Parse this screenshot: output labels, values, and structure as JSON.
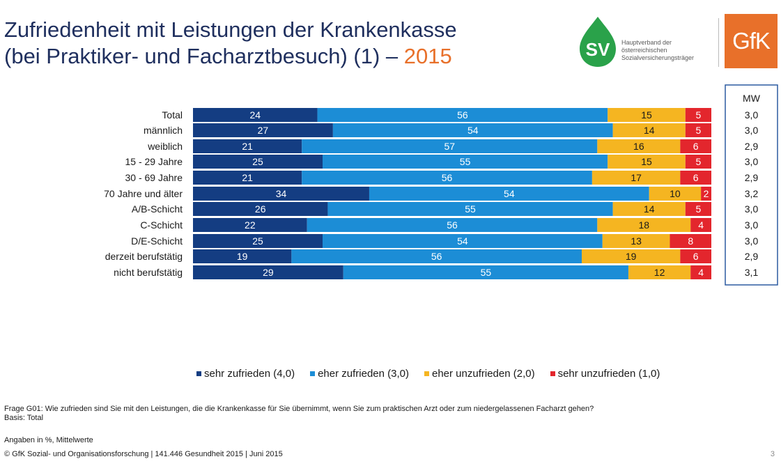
{
  "title": {
    "line1": "Zufriedenheit mit Leistungen der Krankenkasse",
    "line2": "(bei Praktiker- und Facharztbesuch) (1) – ",
    "year": "2015"
  },
  "logos": {
    "sv_mark": "SV",
    "sv_text": [
      "Hauptverband der",
      "österreichischen",
      "Sozialversicherungsträger"
    ],
    "gfk": "GfK"
  },
  "colors": {
    "sehr_zufrieden": "#143d82",
    "eher_zufrieden": "#1c8dd6",
    "eher_unzufrieden": "#f5b521",
    "sehr_unzufrieden": "#e3262d",
    "mw_box": "#2c5aa0"
  },
  "chart_data": {
    "type": "bar",
    "orientation": "horizontal-stacked-100",
    "categories": [
      "Total",
      "männlich",
      "weiblich",
      "15 - 29 Jahre",
      "30 - 69 Jahre",
      "70 Jahre und älter",
      "A/B-Schicht",
      "C-Schicht",
      "D/E-Schicht",
      "derzeit berufstätig",
      "nicht berufstätig"
    ],
    "groups": [
      [
        0
      ],
      [
        1,
        2
      ],
      [
        3,
        4,
        5
      ],
      [
        6,
        7,
        8
      ],
      [
        9,
        10
      ]
    ],
    "series": [
      {
        "name": "sehr zufrieden (4,0)",
        "values": [
          24,
          27,
          21,
          25,
          21,
          34,
          26,
          22,
          25,
          19,
          29
        ]
      },
      {
        "name": "eher zufrieden (3,0)",
        "values": [
          56,
          54,
          57,
          55,
          56,
          54,
          55,
          56,
          54,
          56,
          55
        ]
      },
      {
        "name": "eher unzufrieden (2,0)",
        "values": [
          15,
          14,
          16,
          15,
          17,
          10,
          14,
          18,
          13,
          19,
          12
        ]
      },
      {
        "name": "sehr unzufrieden (1,0)",
        "values": [
          5,
          5,
          6,
          5,
          6,
          2,
          5,
          4,
          8,
          6,
          4
        ]
      }
    ],
    "mw_label": "MW",
    "mw_values": [
      "3,0",
      "3,0",
      "2,9",
      "3,0",
      "2,9",
      "3,2",
      "3,0",
      "3,0",
      "3,0",
      "2,9",
      "3,1"
    ],
    "legend_position": "bottom"
  },
  "footer": {
    "question": "Frage G01: Wie zufrieden sind Sie mit den Leistungen, die die Krankenkasse für Sie übernimmt, wenn Sie zum praktischen Arzt oder zum niedergelassenen Facharzt gehen?",
    "basis": "Basis: Total",
    "units": "Angaben in %, Mittelwerte",
    "copyright": "© GfK Sozial- und Organisationsforschung | 141.446 Gesundheit 2015 | Juni 2015",
    "page": "3"
  }
}
